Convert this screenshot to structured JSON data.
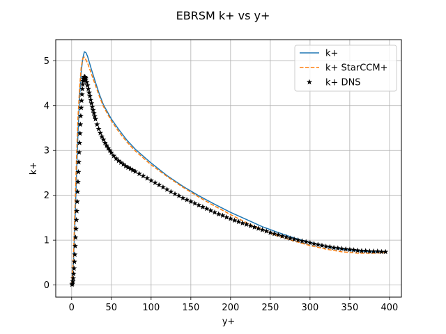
{
  "chart_data": {
    "type": "line",
    "title": "EBRSM k+ vs y+",
    "xlabel": "y+",
    "ylabel": "k+",
    "xlim": [
      -20,
      415
    ],
    "ylim": [
      -0.27,
      5.47
    ],
    "xticks": [
      0,
      50,
      100,
      150,
      200,
      250,
      300,
      350,
      400
    ],
    "yticks": [
      0,
      1,
      2,
      3,
      4,
      5
    ],
    "grid": true,
    "legend_position": "top-right",
    "series": [
      {
        "name": "k+",
        "style": "solid",
        "color": "#1f77b4",
        "x": [
          0,
          2,
          4,
          6,
          8,
          10,
          12,
          14,
          16,
          18,
          20,
          25,
          30,
          35,
          40,
          50,
          60,
          70,
          80,
          100,
          120,
          140,
          160,
          180,
          200,
          220,
          240,
          260,
          280,
          300,
          320,
          340,
          360,
          380,
          395
        ],
        "y": [
          0,
          0.4,
          1.3,
          2.4,
          3.4,
          4.2,
          4.75,
          5.05,
          5.2,
          5.18,
          5.1,
          4.8,
          4.52,
          4.25,
          4.02,
          3.7,
          3.45,
          3.22,
          3.03,
          2.72,
          2.44,
          2.2,
          1.99,
          1.8,
          1.62,
          1.46,
          1.3,
          1.17,
          1.05,
          0.95,
          0.86,
          0.8,
          0.76,
          0.74,
          0.74
        ]
      },
      {
        "name": "k+ StarCCM+",
        "style": "dashed",
        "color": "#ff7f0e",
        "x": [
          0,
          2,
          4,
          6,
          8,
          10,
          12,
          14,
          16,
          18,
          20,
          25,
          30,
          35,
          40,
          50,
          60,
          70,
          80,
          100,
          120,
          140,
          160,
          180,
          200,
          220,
          240,
          260,
          280,
          300,
          320,
          340,
          360,
          380,
          395
        ],
        "y": [
          0,
          0.5,
          1.6,
          2.8,
          3.75,
          4.4,
          4.85,
          5.05,
          5.08,
          5.02,
          4.95,
          4.7,
          4.45,
          4.2,
          3.98,
          3.66,
          3.4,
          3.18,
          2.99,
          2.68,
          2.42,
          2.18,
          1.96,
          1.76,
          1.57,
          1.39,
          1.23,
          1.09,
          0.98,
          0.88,
          0.8,
          0.74,
          0.71,
          0.71,
          0.72
        ]
      },
      {
        "name": "k+ DNS",
        "style": "star-markers",
        "color": "#000000",
        "x": [
          0.5,
          1,
          1.5,
          2,
          2.5,
          3,
          3.5,
          4,
          4.5,
          5,
          5.5,
          6,
          6.5,
          7,
          7.5,
          8,
          8.5,
          9,
          9.5,
          10,
          10.5,
          11,
          11.5,
          12,
          12.5,
          13,
          13.5,
          14,
          14.5,
          15,
          15.5,
          16,
          16.5,
          17,
          17.5,
          18,
          19,
          20,
          21,
          22,
          23,
          24,
          25,
          26,
          27,
          28,
          29,
          30,
          32,
          34,
          36,
          38,
          40,
          42,
          44,
          46,
          48,
          50,
          53,
          56,
          59,
          62,
          65,
          68,
          71,
          74,
          77,
          80,
          85,
          90,
          95,
          100,
          105,
          110,
          115,
          120,
          125,
          130,
          135,
          140,
          145,
          150,
          155,
          160,
          165,
          170,
          175,
          180,
          185,
          190,
          195,
          200,
          205,
          210,
          215,
          220,
          225,
          230,
          235,
          240,
          245,
          250,
          255,
          260,
          265,
          270,
          275,
          280,
          285,
          290,
          295,
          300,
          305,
          310,
          315,
          320,
          325,
          330,
          335,
          340,
          345,
          350,
          355,
          360,
          365,
          370,
          375,
          380,
          385,
          390,
          395
        ],
        "y": [
          0.01,
          0.03,
          0.08,
          0.15,
          0.25,
          0.37,
          0.52,
          0.68,
          0.87,
          1.06,
          1.25,
          1.45,
          1.65,
          1.86,
          2.08,
          2.3,
          2.52,
          2.74,
          2.96,
          3.17,
          3.38,
          3.58,
          3.77,
          3.95,
          4.11,
          4.25,
          4.37,
          4.47,
          4.55,
          4.6,
          4.63,
          4.64,
          4.64,
          4.63,
          4.61,
          4.58,
          4.52,
          4.45,
          4.37,
          4.29,
          4.21,
          4.13,
          4.05,
          3.97,
          3.9,
          3.83,
          3.76,
          3.7,
          3.58,
          3.48,
          3.39,
          3.31,
          3.24,
          3.17,
          3.11,
          3.05,
          3.0,
          2.95,
          2.88,
          2.82,
          2.77,
          2.73,
          2.69,
          2.65,
          2.62,
          2.59,
          2.56,
          2.53,
          2.48,
          2.43,
          2.38,
          2.33,
          2.28,
          2.23,
          2.18,
          2.13,
          2.08,
          2.03,
          1.99,
          1.94,
          1.9,
          1.86,
          1.82,
          1.78,
          1.74,
          1.7,
          1.66,
          1.62,
          1.58,
          1.55,
          1.51,
          1.48,
          1.44,
          1.41,
          1.38,
          1.35,
          1.32,
          1.29,
          1.26,
          1.23,
          1.2,
          1.17,
          1.14,
          1.12,
          1.09,
          1.07,
          1.04,
          1.02,
          1.0,
          0.98,
          0.96,
          0.94,
          0.92,
          0.9,
          0.88,
          0.86,
          0.85,
          0.83,
          0.82,
          0.81,
          0.8,
          0.79,
          0.78,
          0.77,
          0.76,
          0.76,
          0.75,
          0.75,
          0.75,
          0.74,
          0.74
        ]
      }
    ]
  }
}
